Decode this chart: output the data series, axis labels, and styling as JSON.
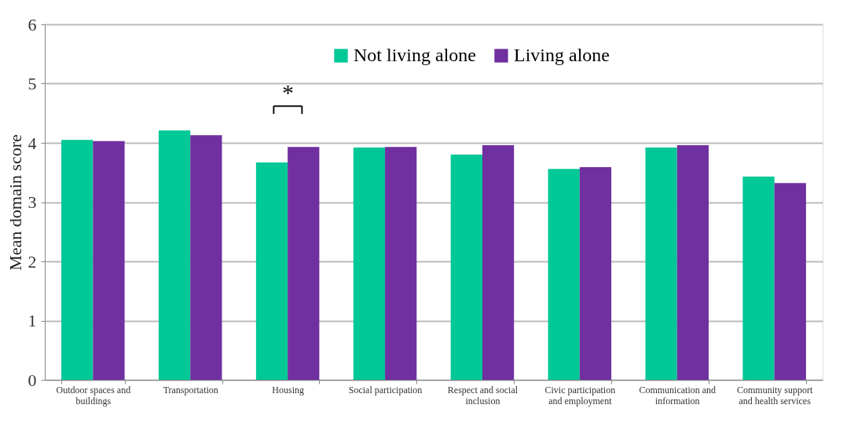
{
  "chart_data": {
    "type": "bar",
    "ylabel": "Mean domain score",
    "categories": [
      "Outdoor spaces and buildings",
      "Transportation",
      "Housing",
      "Social participation",
      "Respect and social inclusion",
      "Civic participation and employment",
      "Communication and information",
      "Community support and health services"
    ],
    "series": [
      {
        "name": "Not living alone",
        "color": "#00c896",
        "values": [
          4.05,
          4.21,
          3.67,
          3.92,
          3.8,
          3.56,
          3.92,
          3.43
        ]
      },
      {
        "name": "Living alone",
        "color": "#7030a0",
        "values": [
          4.03,
          4.13,
          3.93,
          3.93,
          3.96,
          3.59,
          3.96,
          3.32
        ]
      }
    ],
    "ylim": [
      0,
      6
    ],
    "yticks": [
      0,
      1,
      2,
      3,
      4,
      5,
      6
    ],
    "grid": "y",
    "legend": "top",
    "annotations": [
      "*"
    ]
  }
}
